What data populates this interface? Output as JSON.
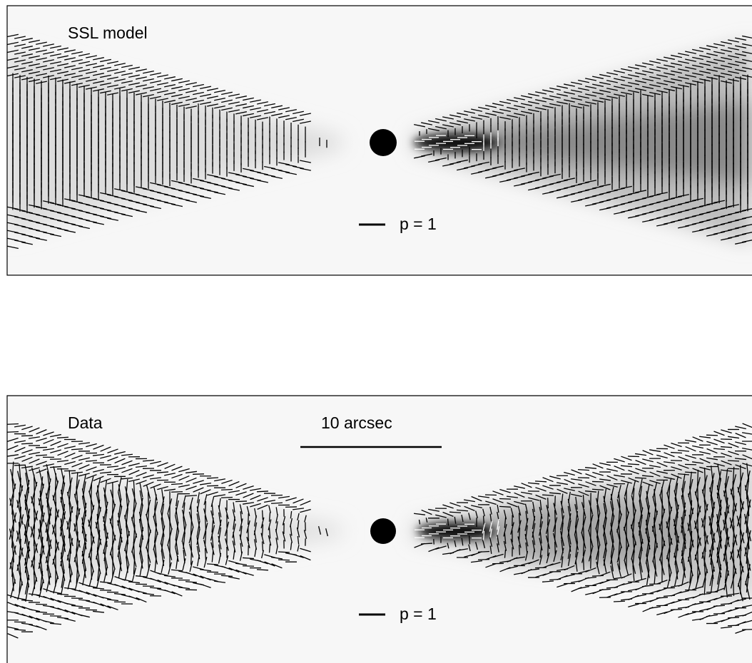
{
  "panels": [
    {
      "label": "SSL model",
      "scale_label": "p = 1"
    },
    {
      "label": "Data",
      "bar_label": "10 arcsec",
      "scale_label": "p = 1"
    }
  ]
}
